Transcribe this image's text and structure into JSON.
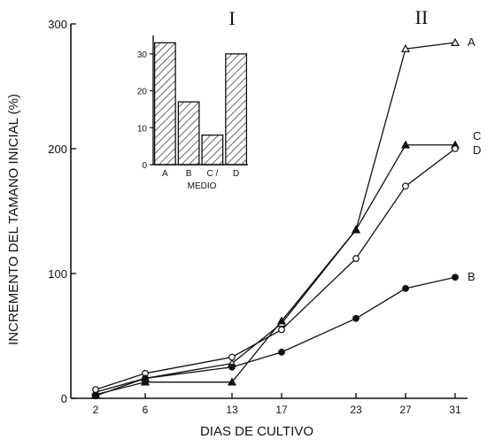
{
  "chart_data": [
    {
      "id": "main",
      "type": "line",
      "title": "",
      "xlabel": "DIAS DE CULTIVO",
      "ylabel": "INCREMENTO DEL TAMANO INICIAL (%)",
      "panel_label": "II",
      "x_ticks": [
        2,
        6,
        13,
        17,
        23,
        27,
        31
      ],
      "y_ticks": [
        0,
        100,
        200,
        300
      ],
      "xlim": [
        0,
        32
      ],
      "ylim": [
        0,
        300
      ],
      "grid": false,
      "series": [
        {
          "name": "A",
          "marker": "open-triangle",
          "points": [
            [
              2,
              5
            ],
            [
              6,
              16
            ],
            [
              13,
              28
            ],
            [
              17,
              60
            ],
            [
              23,
              135
            ],
            [
              27,
              280
            ],
            [
              31,
              285
            ]
          ]
        },
        {
          "name": "C",
          "marker": "filled-triangle",
          "points": [
            [
              2,
              3
            ],
            [
              6,
              13
            ],
            [
              13,
              13
            ],
            [
              17,
              62
            ],
            [
              23,
              135
            ],
            [
              27,
              203
            ],
            [
              31,
              203
            ]
          ]
        },
        {
          "name": "D",
          "marker": "open-circle",
          "points": [
            [
              2,
              7
            ],
            [
              6,
              20
            ],
            [
              13,
              33
            ],
            [
              17,
              55
            ],
            [
              23,
              112
            ],
            [
              27,
              170
            ],
            [
              31,
              200
            ]
          ]
        },
        {
          "name": "B",
          "marker": "filled-circle",
          "points": [
            [
              2,
              2
            ],
            [
              6,
              16
            ],
            [
              13,
              25
            ],
            [
              17,
              37
            ],
            [
              23,
              64
            ],
            [
              27,
              88
            ],
            [
              31,
              97
            ]
          ]
        }
      ]
    },
    {
      "id": "inset",
      "type": "bar",
      "panel_label": "I",
      "xlabel": "MEDIO",
      "ylabel": "",
      "categories": [
        "A",
        "B",
        "C",
        "D"
      ],
      "category_labels": [
        "A",
        "B",
        "C /",
        "D"
      ],
      "values": [
        33,
        17,
        8,
        30
      ],
      "y_ticks": [
        0,
        10,
        20,
        30
      ],
      "ylim": [
        0,
        35
      ],
      "fill": "hatched"
    }
  ]
}
